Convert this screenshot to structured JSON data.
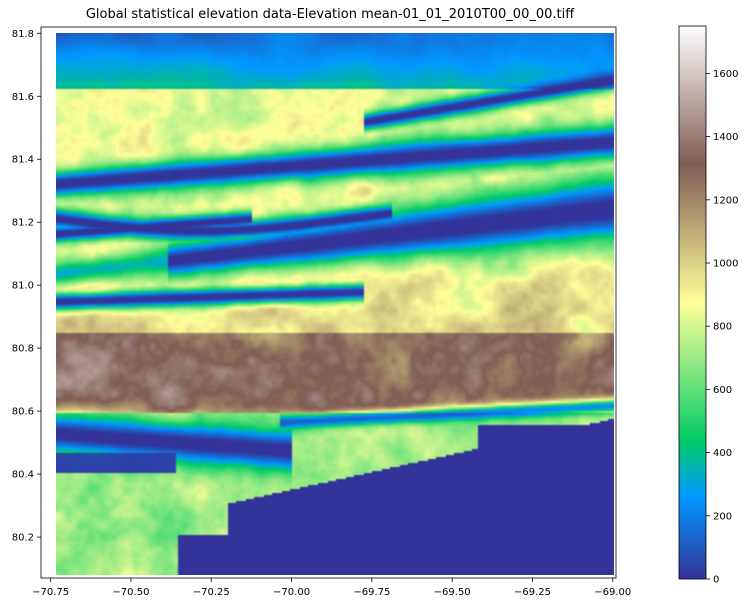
{
  "chart_data": {
    "type": "heatmap",
    "title": "Global statistical elevation data-Elevation mean-01_01_2010T00_00_00.tiff",
    "xlabel": "",
    "ylabel": "",
    "xlim": [
      -70.78,
      -68.99
    ],
    "ylim": [
      80.07,
      81.82
    ],
    "x_ticks": [
      -70.75,
      -70.5,
      -70.25,
      -70.0,
      -69.75,
      -69.5,
      -69.25,
      -69.0
    ],
    "x_tick_labels": [
      "−70.75",
      "−70.50",
      "−70.25",
      "−70.00",
      "−69.75",
      "−69.50",
      "−69.25",
      "−69.00"
    ],
    "y_ticks": [
      80.2,
      80.4,
      80.6,
      80.8,
      81.0,
      81.2,
      81.4,
      81.6,
      81.8
    ],
    "y_tick_labels": [
      "80.2",
      "80.4",
      "80.6",
      "80.8",
      "81.0",
      "81.2",
      "81.4",
      "81.6",
      "81.8"
    ],
    "colormap": "terrain",
    "colorbar": {
      "range": [
        0,
        1750
      ],
      "ticks": [
        0,
        200,
        400,
        600,
        800,
        1000,
        1200,
        1400,
        1600
      ],
      "tick_labels": [
        "0",
        "200",
        "400",
        "600",
        "800",
        "1000",
        "1200",
        "1400",
        "1600"
      ]
    },
    "colormap_stops": [
      {
        "v": 0.0,
        "c": "#333399"
      },
      {
        "v": 0.15,
        "c": "#0099ff"
      },
      {
        "v": 0.25,
        "c": "#00cc66"
      },
      {
        "v": 0.5,
        "c": "#ffff99"
      },
      {
        "v": 0.75,
        "c": "#805c54"
      },
      {
        "v": 1.0,
        "c": "#ffffff"
      }
    ],
    "grid": false,
    "legend": "colorbar-right"
  }
}
